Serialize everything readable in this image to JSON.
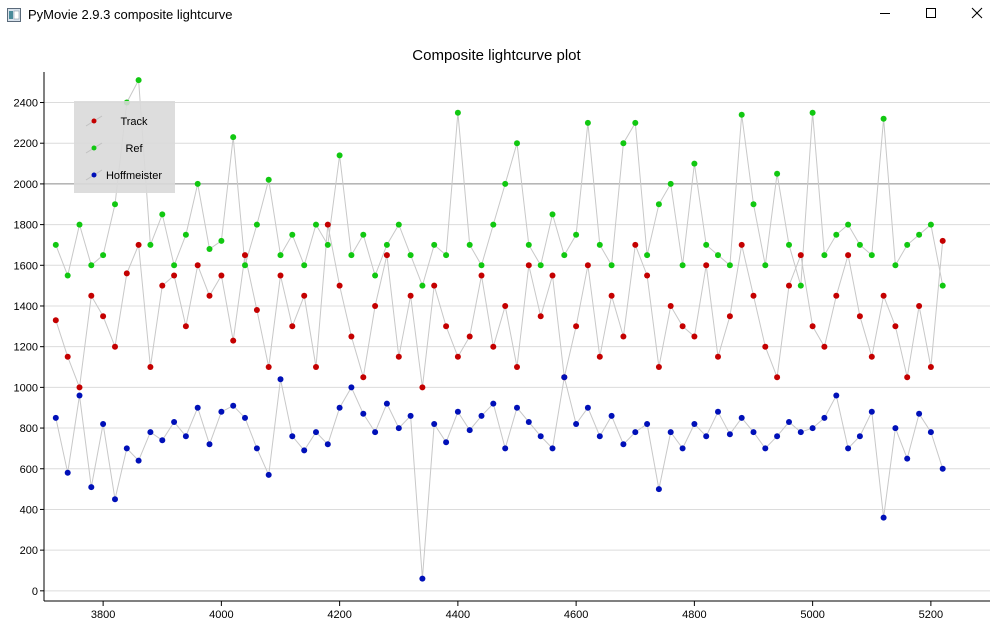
{
  "window": {
    "title": "PyMovie 2.9.3 composite lightcurve",
    "icon": "pymovie-app-icon",
    "controls": [
      "minimize",
      "maximize",
      "close"
    ]
  },
  "chart_data": {
    "type": "scatter",
    "title": "Composite lightcurve plot",
    "xlabel": "",
    "ylabel": "",
    "xlim": [
      3700,
      5300
    ],
    "ylim": [
      -50,
      2550
    ],
    "xticks": [
      3800,
      4000,
      4200,
      4400,
      4600,
      4800,
      5000,
      5200
    ],
    "yticks": [
      0,
      200,
      400,
      600,
      800,
      1000,
      1200,
      1400,
      1600,
      1800,
      2000,
      2200,
      2400
    ],
    "grid": "horizontal",
    "highlight_line_y": 2000,
    "legend_position": "top-left",
    "connecting_lines": true,
    "series": [
      {
        "name": "Track",
        "color": "#c40000",
        "x": [
          3720,
          3740,
          3760,
          3780,
          3800,
          3820,
          3840,
          3860,
          3880,
          3900,
          3920,
          3940,
          3960,
          3980,
          4000,
          4020,
          4040,
          4060,
          4080,
          4100,
          4120,
          4140,
          4160,
          4180,
          4200,
          4220,
          4240,
          4260,
          4280,
          4300,
          4320,
          4340,
          4360,
          4380,
          4400,
          4420,
          4440,
          4460,
          4480,
          4500,
          4520,
          4540,
          4560,
          4580,
          4600,
          4620,
          4640,
          4660,
          4680,
          4700,
          4720,
          4740,
          4760,
          4780,
          4800,
          4820,
          4840,
          4860,
          4880,
          4900,
          4920,
          4940,
          4960,
          4980,
          5000,
          5020,
          5040,
          5060,
          5080,
          5100,
          5120,
          5140,
          5160,
          5180,
          5200,
          5220
        ],
        "y": [
          1330,
          1150,
          1000,
          1450,
          1350,
          1200,
          1560,
          1700,
          1100,
          1500,
          1550,
          1300,
          1600,
          1450,
          1550,
          1230,
          1650,
          1380,
          1100,
          1550,
          1300,
          1450,
          1100,
          1800,
          1500,
          1250,
          1050,
          1400,
          1650,
          1150,
          1450,
          1000,
          1500,
          1300,
          1150,
          1250,
          1550,
          1200,
          1400,
          1100,
          1600,
          1350,
          1550,
          1050,
          1300,
          1600,
          1150,
          1450,
          1250,
          1700,
          1550,
          1100,
          1400,
          1300,
          1250,
          1600,
          1150,
          1350,
          1700,
          1450,
          1200,
          1050,
          1500,
          1650,
          1300,
          1200,
          1450,
          1650,
          1350,
          1150,
          1450,
          1300,
          1050,
          1400,
          1100,
          1720
        ]
      },
      {
        "name": "Ref",
        "color": "#11c811",
        "x": [
          3720,
          3740,
          3760,
          3780,
          3800,
          3820,
          3840,
          3860,
          3880,
          3900,
          3920,
          3940,
          3960,
          3980,
          4000,
          4020,
          4040,
          4060,
          4080,
          4100,
          4120,
          4140,
          4160,
          4180,
          4200,
          4220,
          4240,
          4260,
          4280,
          4300,
          4320,
          4340,
          4360,
          4380,
          4400,
          4420,
          4440,
          4460,
          4480,
          4500,
          4520,
          4540,
          4560,
          4580,
          4600,
          4620,
          4640,
          4660,
          4680,
          4700,
          4720,
          4740,
          4760,
          4780,
          4800,
          4820,
          4840,
          4860,
          4880,
          4900,
          4920,
          4940,
          4960,
          4980,
          5000,
          5020,
          5040,
          5060,
          5080,
          5100,
          5120,
          5140,
          5160,
          5180,
          5200,
          5220
        ],
        "y": [
          1700,
          1550,
          1800,
          1600,
          1650,
          1900,
          2400,
          2510,
          1700,
          1850,
          1600,
          1750,
          2000,
          1680,
          1720,
          2230,
          1600,
          1800,
          2020,
          1650,
          1750,
          1600,
          1800,
          1700,
          2140,
          1650,
          1750,
          1550,
          1700,
          1800,
          1650,
          1500,
          1700,
          1650,
          2350,
          1700,
          1600,
          1800,
          2000,
          2200,
          1700,
          1600,
          1850,
          1650,
          1750,
          2300,
          1700,
          1600,
          2200,
          2300,
          1650,
          1900,
          2000,
          1600,
          2100,
          1700,
          1650,
          1600,
          2340,
          1900,
          1600,
          2050,
          1700,
          1500,
          2350,
          1650,
          1750,
          1800,
          1700,
          1650,
          2320,
          1600,
          1700,
          1750,
          1800,
          1500
        ]
      },
      {
        "name": "Hoffmeister",
        "color": "#0010b8",
        "x": [
          3720,
          3740,
          3760,
          3780,
          3800,
          3820,
          3840,
          3860,
          3880,
          3900,
          3920,
          3940,
          3960,
          3980,
          4000,
          4020,
          4040,
          4060,
          4080,
          4100,
          4120,
          4140,
          4160,
          4180,
          4200,
          4220,
          4240,
          4260,
          4280,
          4300,
          4320,
          4340,
          4360,
          4380,
          4400,
          4420,
          4440,
          4460,
          4480,
          4500,
          4520,
          4540,
          4560,
          4580,
          4600,
          4620,
          4640,
          4660,
          4680,
          4700,
          4720,
          4740,
          4760,
          4780,
          4800,
          4820,
          4840,
          4860,
          4880,
          4900,
          4920,
          4940,
          4960,
          4980,
          5000,
          5020,
          5040,
          5060,
          5080,
          5100,
          5120,
          5140,
          5160,
          5180,
          5200,
          5220
        ],
        "y": [
          850,
          580,
          960,
          510,
          820,
          450,
          700,
          640,
          780,
          740,
          830,
          760,
          900,
          720,
          880,
          910,
          850,
          700,
          570,
          1040,
          760,
          690,
          780,
          720,
          900,
          1000,
          870,
          780,
          920,
          800,
          860,
          60,
          820,
          730,
          880,
          790,
          860,
          920,
          700,
          900,
          830,
          760,
          700,
          1050,
          820,
          900,
          760,
          860,
          720,
          780,
          820,
          500,
          780,
          700,
          820,
          760,
          880,
          770,
          850,
          780,
          700,
          760,
          830,
          780,
          800,
          850,
          960,
          700,
          760,
          880,
          360,
          800,
          650,
          870,
          780,
          600
        ]
      }
    ]
  }
}
